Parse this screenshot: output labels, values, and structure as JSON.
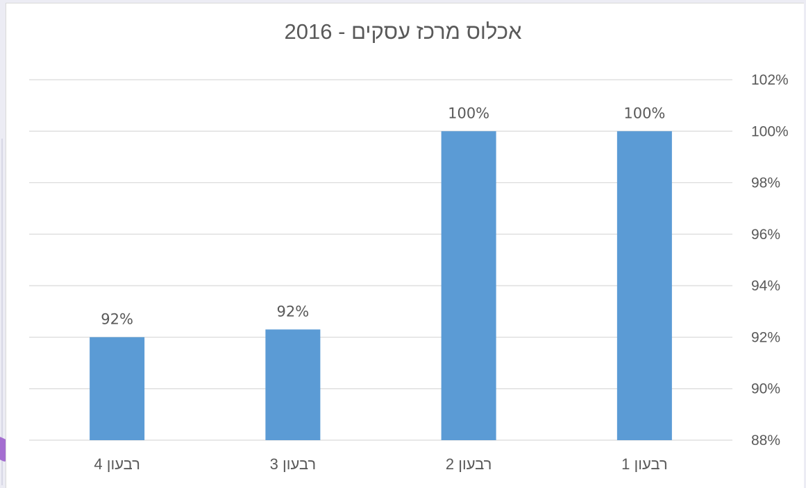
{
  "chart_data": {
    "type": "bar",
    "title": "אכלוס מרכז עסקים - 2016",
    "xlabel": "",
    "ylabel": "",
    "categories": [
      "רבעון 4",
      "רבעון 3",
      "רבעון 2",
      "רבעון 1"
    ],
    "values": [
      92,
      92.3,
      100,
      100
    ],
    "data_labels": [
      "92%",
      "92%",
      "100%",
      "100%"
    ],
    "ylim": [
      88,
      102
    ],
    "y_ticks": [
      "88%",
      "90%",
      "92%",
      "94%",
      "96%",
      "98%",
      "100%",
      "102%"
    ],
    "y_tick_values": [
      88,
      90,
      92,
      94,
      96,
      98,
      100,
      102
    ],
    "y_axis_side": "right",
    "grid": true,
    "legend": "none",
    "bar_color": "#5b9bd5",
    "grid_color": "#d9d9d9",
    "text_color": "#595959"
  }
}
